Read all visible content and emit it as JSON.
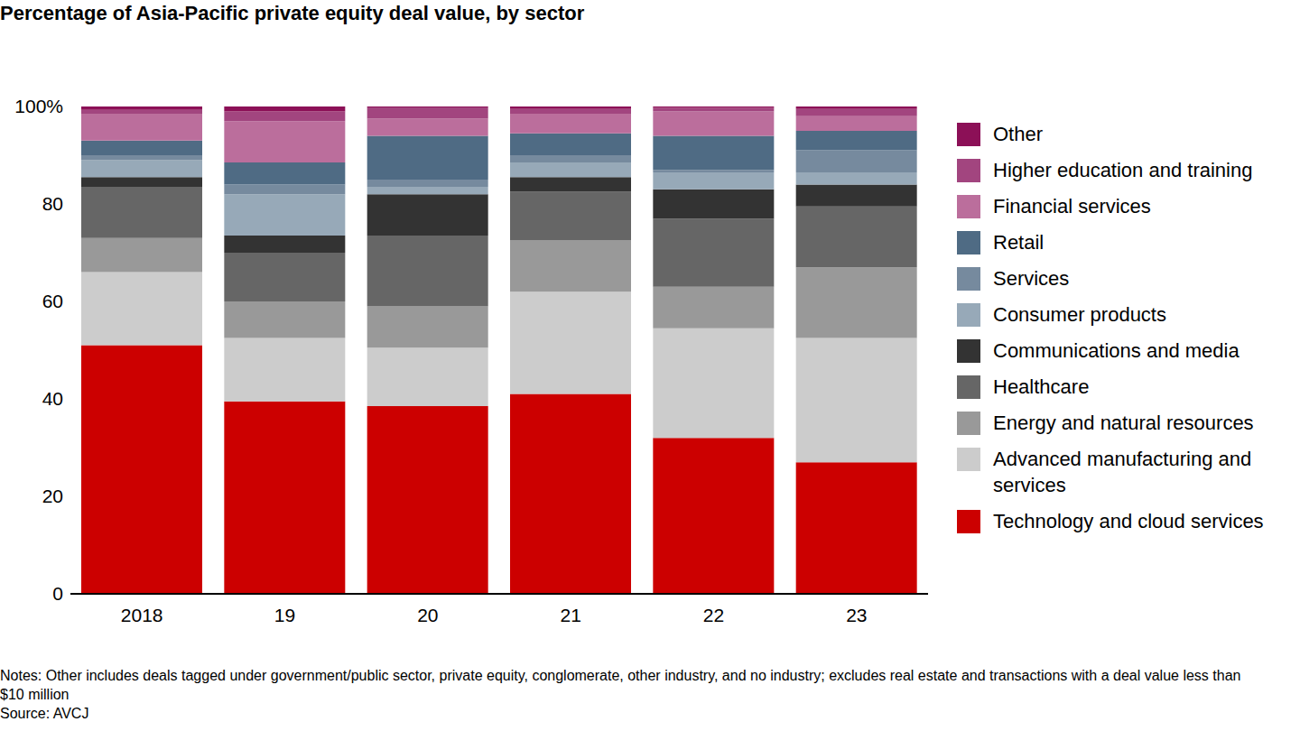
{
  "chart_data": {
    "type": "bar",
    "title": "Percentage of Asia-Pacific private equity deal value, by sector",
    "categories": [
      "2018",
      "19",
      "20",
      "21",
      "22",
      "23"
    ],
    "stacked": true,
    "legend": "right",
    "grid": false,
    "data_labels": false,
    "ylim": [
      0,
      100
    ],
    "yticks": [
      0,
      20,
      40,
      60,
      80,
      {
        "value": 100,
        "label": "100%"
      }
    ],
    "series": [
      {
        "name": "Technology and cloud services",
        "color": "#cc0000",
        "values": [
          51,
          39.5,
          38.5,
          41,
          32,
          27
        ]
      },
      {
        "name": "Advanced manufacturing and services",
        "color": "#cccccc",
        "values": [
          15,
          13,
          12,
          21,
          22.5,
          25.5
        ]
      },
      {
        "name": "Energy and natural resources",
        "color": "#999999",
        "values": [
          7,
          7.5,
          8.5,
          10.5,
          8.5,
          14.5
        ]
      },
      {
        "name": "Healthcare",
        "color": "#666666",
        "values": [
          10.5,
          10,
          14.5,
          10,
          14,
          12.5
        ]
      },
      {
        "name": "Communications and media",
        "color": "#333333",
        "values": [
          2,
          3.5,
          8.5,
          3,
          6,
          4.5
        ]
      },
      {
        "name": "Consumer products",
        "color": "#97a9b8",
        "values": [
          3.5,
          8.5,
          1.5,
          3,
          3.5,
          2.5
        ]
      },
      {
        "name": "Services",
        "color": "#768a9e",
        "values": [
          1,
          2,
          1.5,
          1.5,
          0.5,
          4.5
        ]
      },
      {
        "name": "Retail",
        "color": "#4f6b84",
        "values": [
          3,
          4.5,
          9,
          4.5,
          7,
          4
        ]
      },
      {
        "name": "Financial services",
        "color": "#bb6e9c",
        "values": [
          5.5,
          8.5,
          3.5,
          4,
          5,
          3
        ]
      },
      {
        "name": "Higher education and training",
        "color": "#a2457f",
        "values": [
          0.8,
          2,
          2.3,
          1,
          0.7,
          1.5
        ]
      },
      {
        "name": "Other",
        "color": "#8c1057",
        "values": [
          0.7,
          1,
          0.2,
          0.5,
          0.3,
          0.5
        ]
      }
    ],
    "notes": "Notes: Other includes deals tagged under government/public sector, private equity, conglomerate, other industry, and no industry; excludes real estate and transactions with a deal value less than $10 million",
    "source": "Source: AVCJ"
  }
}
